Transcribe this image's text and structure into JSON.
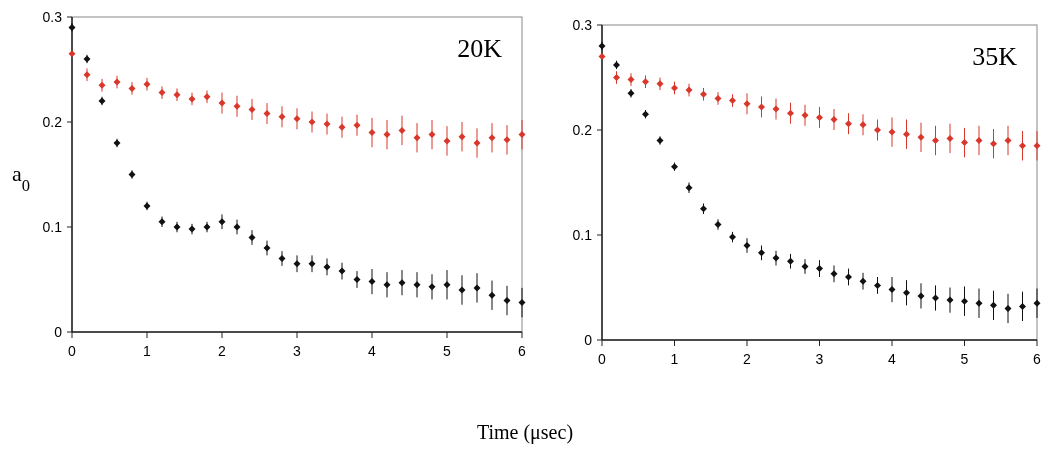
{
  "chart_data": [
    {
      "type": "scatter",
      "ylabel": "a$_{0}$",
      "xlabel": "Time (μsec)",
      "annotations": [
        "20K"
      ],
      "marker": "diamond",
      "grid": false,
      "xlim": [
        0,
        6
      ],
      "xticks": [
        0,
        1,
        2,
        3,
        4,
        5,
        6
      ],
      "ylim": [
        0,
        0.3
      ],
      "yticks": [
        0,
        0.1,
        0.2,
        0.3
      ],
      "x": [
        0,
        0.2,
        0.4,
        0.6,
        0.8,
        1,
        1.2,
        1.4,
        1.6,
        1.8,
        2,
        2.2,
        2.4,
        2.6,
        2.8,
        3,
        3.2,
        3.4,
        3.6,
        3.8,
        4,
        4.2,
        4.4,
        4.6,
        4.8,
        5,
        5.2,
        5.4,
        5.6,
        5.8,
        6
      ],
      "series": [
        {
          "color": "#d9372b",
          "values": [
            0.265,
            0.245,
            0.235,
            0.238,
            0.232,
            0.236,
            0.228,
            0.226,
            0.222,
            0.224,
            0.218,
            0.215,
            0.212,
            0.208,
            0.205,
            0.203,
            0.2,
            0.198,
            0.195,
            0.197,
            0.19,
            0.188,
            0.192,
            0.185,
            0.188,
            0.182,
            0.186,
            0.18,
            0.185,
            0.183,
            0.188
          ],
          "errors": [
            null,
            0.006,
            0.006,
            0.006,
            0.006,
            0.006,
            0.006,
            0.006,
            0.006,
            0.006,
            0.01,
            0.01,
            0.01,
            0.01,
            0.01,
            0.01,
            0.01,
            0.01,
            0.01,
            0.01,
            0.014,
            0.014,
            0.014,
            0.014,
            0.014,
            0.014,
            0.014,
            0.014,
            0.014,
            0.014,
            0.014
          ]
        },
        {
          "color": "#111111",
          "values": [
            0.29,
            0.26,
            0.22,
            0.18,
            0.15,
            0.12,
            0.105,
            0.1,
            0.098,
            0.1,
            0.105,
            0.1,
            0.09,
            0.08,
            0.07,
            0.065,
            0.065,
            0.062,
            0.058,
            0.05,
            0.048,
            0.045,
            0.047,
            0.045,
            0.043,
            0.045,
            0.04,
            0.042,
            0.035,
            0.03,
            0.028
          ],
          "errors": [
            0.004,
            0.004,
            0.004,
            0.004,
            0.004,
            0.004,
            0.005,
            0.005,
            0.005,
            0.005,
            0.007,
            0.007,
            0.007,
            0.007,
            0.007,
            0.008,
            0.008,
            0.008,
            0.008,
            0.008,
            0.012,
            0.012,
            0.012,
            0.012,
            0.012,
            0.014,
            0.014,
            0.014,
            0.014,
            0.014,
            0.014
          ]
        }
      ]
    },
    {
      "type": "scatter",
      "annotations": [
        "35K"
      ],
      "marker": "diamond",
      "grid": false,
      "xlim": [
        0,
        6
      ],
      "xticks": [
        0,
        1,
        2,
        3,
        4,
        5,
        6
      ],
      "ylim": [
        0,
        0.3
      ],
      "yticks": [
        0,
        0.1,
        0.2,
        0.3
      ],
      "x": [
        0,
        0.2,
        0.4,
        0.6,
        0.8,
        1,
        1.2,
        1.4,
        1.6,
        1.8,
        2,
        2.2,
        2.4,
        2.6,
        2.8,
        3,
        3.2,
        3.4,
        3.6,
        3.8,
        4,
        4.2,
        4.4,
        4.6,
        4.8,
        5,
        5.2,
        5.4,
        5.6,
        5.8,
        6
      ],
      "series": [
        {
          "color": "#d9372b",
          "values": [
            0.27,
            0.25,
            0.248,
            0.246,
            0.244,
            0.24,
            0.238,
            0.234,
            0.23,
            0.228,
            0.225,
            0.222,
            0.22,
            0.216,
            0.214,
            0.212,
            0.21,
            0.206,
            0.205,
            0.2,
            0.198,
            0.196,
            0.193,
            0.19,
            0.192,
            0.188,
            0.19,
            0.187,
            0.19,
            0.185,
            0.185
          ],
          "errors": [
            null,
            0.006,
            0.006,
            0.006,
            0.006,
            0.006,
            0.006,
            0.006,
            0.006,
            0.006,
            0.01,
            0.01,
            0.01,
            0.01,
            0.01,
            0.01,
            0.01,
            0.01,
            0.01,
            0.01,
            0.014,
            0.014,
            0.014,
            0.014,
            0.014,
            0.014,
            0.014,
            0.014,
            0.014,
            0.014,
            0.014
          ]
        },
        {
          "color": "#111111",
          "values": [
            0.28,
            0.262,
            0.235,
            0.215,
            0.19,
            0.165,
            0.145,
            0.125,
            0.11,
            0.098,
            0.09,
            0.083,
            0.078,
            0.075,
            0.07,
            0.068,
            0.063,
            0.06,
            0.056,
            0.052,
            0.048,
            0.045,
            0.042,
            0.04,
            0.038,
            0.037,
            0.035,
            0.033,
            0.03,
            0.032,
            0.035
          ],
          "errors": [
            0.004,
            0.004,
            0.004,
            0.004,
            0.004,
            0.004,
            0.005,
            0.005,
            0.005,
            0.005,
            0.007,
            0.007,
            0.007,
            0.007,
            0.007,
            0.008,
            0.008,
            0.008,
            0.008,
            0.008,
            0.012,
            0.012,
            0.012,
            0.012,
            0.012,
            0.014,
            0.014,
            0.014,
            0.014,
            0.014,
            0.014
          ]
        }
      ]
    }
  ]
}
